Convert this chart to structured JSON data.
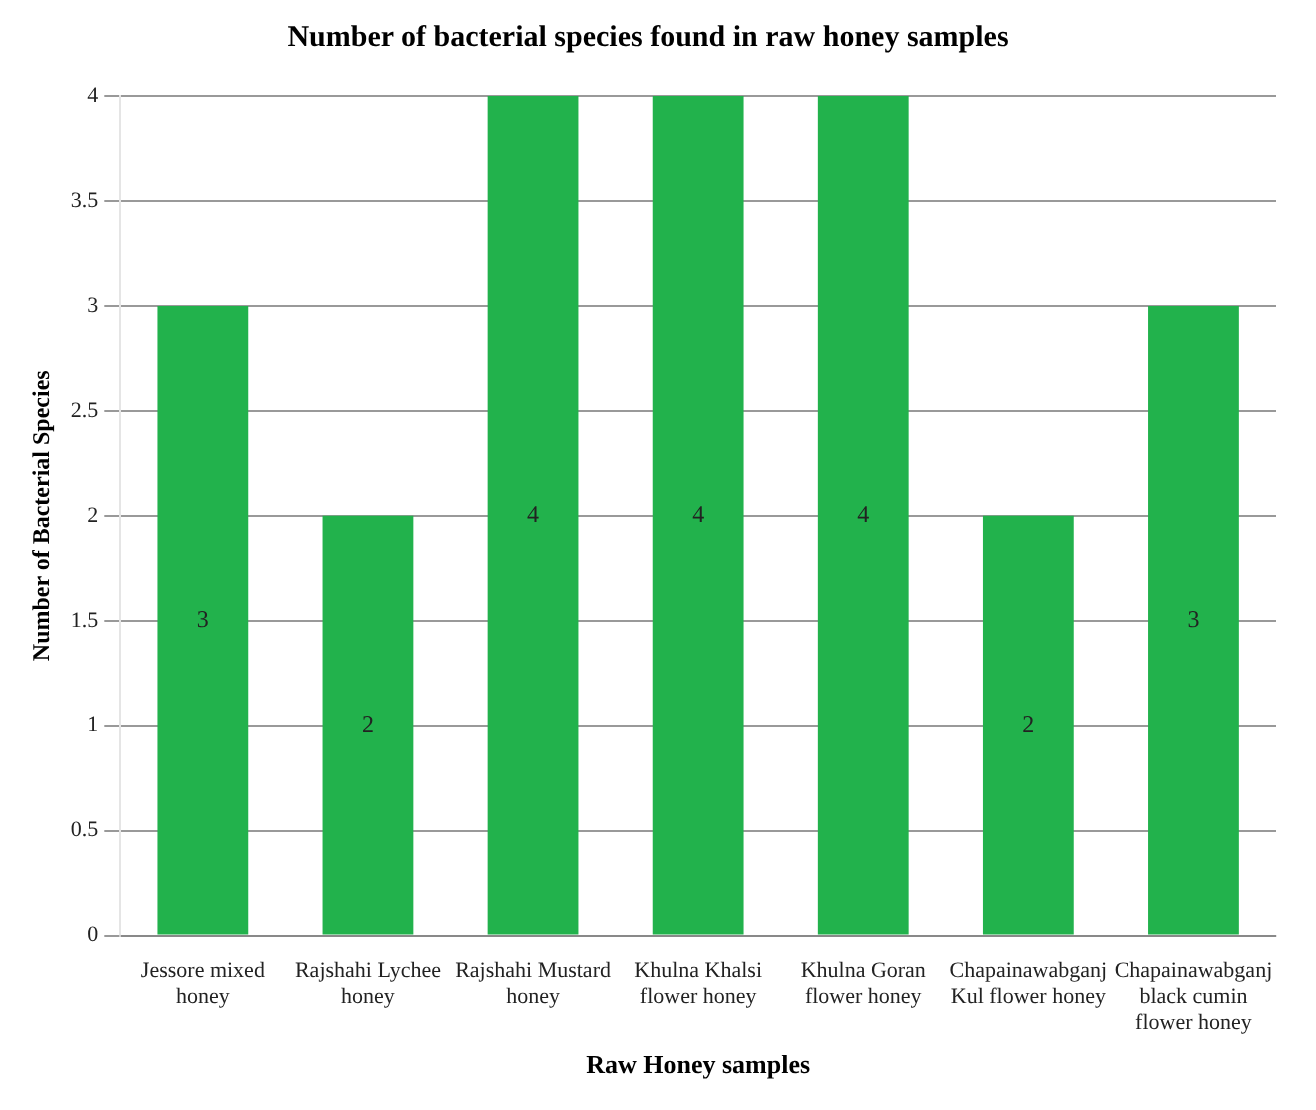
{
  "chart_data": {
    "type": "bar",
    "title": "Number of bacterial species found in raw honey samples",
    "xlabel": "Raw Honey samples",
    "ylabel": "Number of Bacterial Species",
    "categories": [
      "Jessore mixed honey",
      "Rajshahi Lychee honey",
      "Rajshahi Mustard honey",
      "Khulna Khalsi flower honey",
      "Khulna Goran flower honey",
      "Chapainawabganj Kul flower honey",
      "Chapainawabganj black cumin flower honey"
    ],
    "values": [
      3,
      2,
      4,
      4,
      4,
      2,
      3
    ],
    "color": "#22b24c",
    "ylim": [
      0,
      4
    ],
    "yticks": [
      0,
      0.5,
      1,
      1.5,
      2,
      2.5,
      3,
      3.5,
      4
    ],
    "grid": "y",
    "data_labels": true,
    "legend": false
  }
}
